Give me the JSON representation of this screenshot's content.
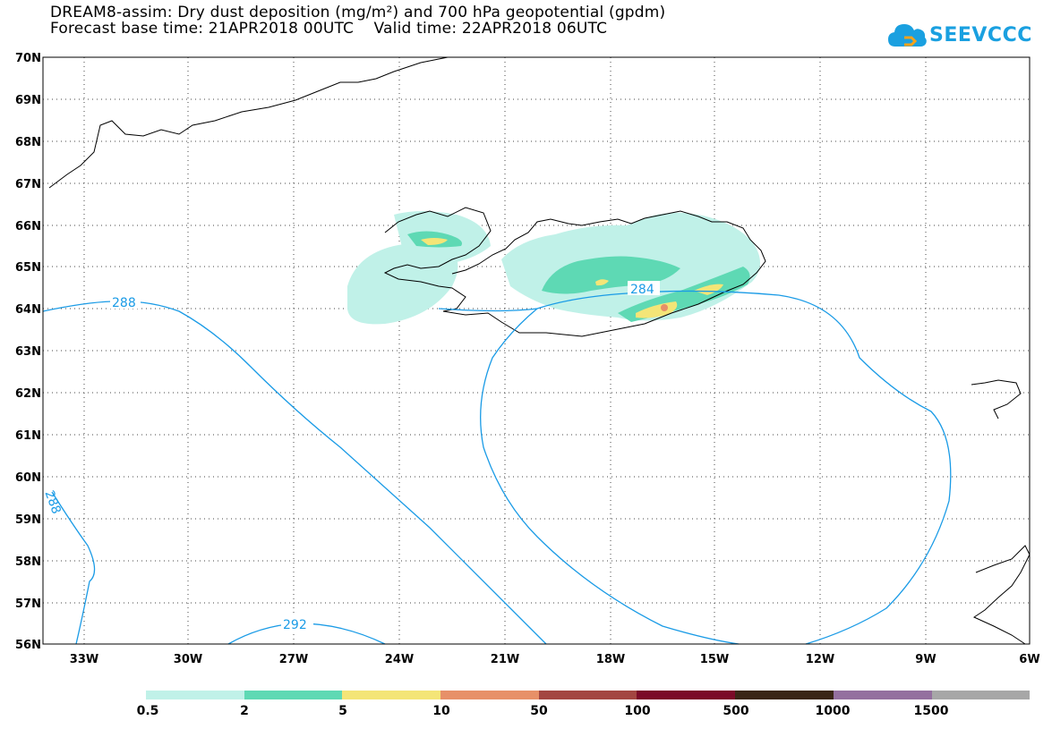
{
  "title_line1": "DREAM8-assim: Dry dust deposition (mg/m²) and 700 hPa geopotential (gpdm)",
  "title_line2": "Forecast base time: 21APR2018 00UTC    Valid time: 22APR2018 06UTC",
  "logo_text": "SEEVCCC",
  "axes": {
    "lat_labels": [
      "70N",
      "69N",
      "68N",
      "67N",
      "66N",
      "65N",
      "64N",
      "63N",
      "62N",
      "61N",
      "60N",
      "59N",
      "58N",
      "57N",
      "56N"
    ],
    "lon_labels": [
      "33W",
      "30W",
      "27W",
      "24W",
      "21W",
      "18W",
      "15W",
      "12W",
      "9W",
      "6W"
    ]
  },
  "contours": {
    "color": "#1a9be6",
    "labels": [
      "288",
      "284",
      "292",
      "288"
    ]
  },
  "legend": {
    "colors": [
      "#c0f1e8",
      "#5ed9b4",
      "#f4e577",
      "#e79068",
      "#a34541",
      "#7b0a28",
      "#3a2616",
      "#94709f",
      "#a7a7a7"
    ],
    "labels": [
      "0.5",
      "2",
      "5",
      "10",
      "50",
      "100",
      "500",
      "1000",
      "1500"
    ]
  }
}
